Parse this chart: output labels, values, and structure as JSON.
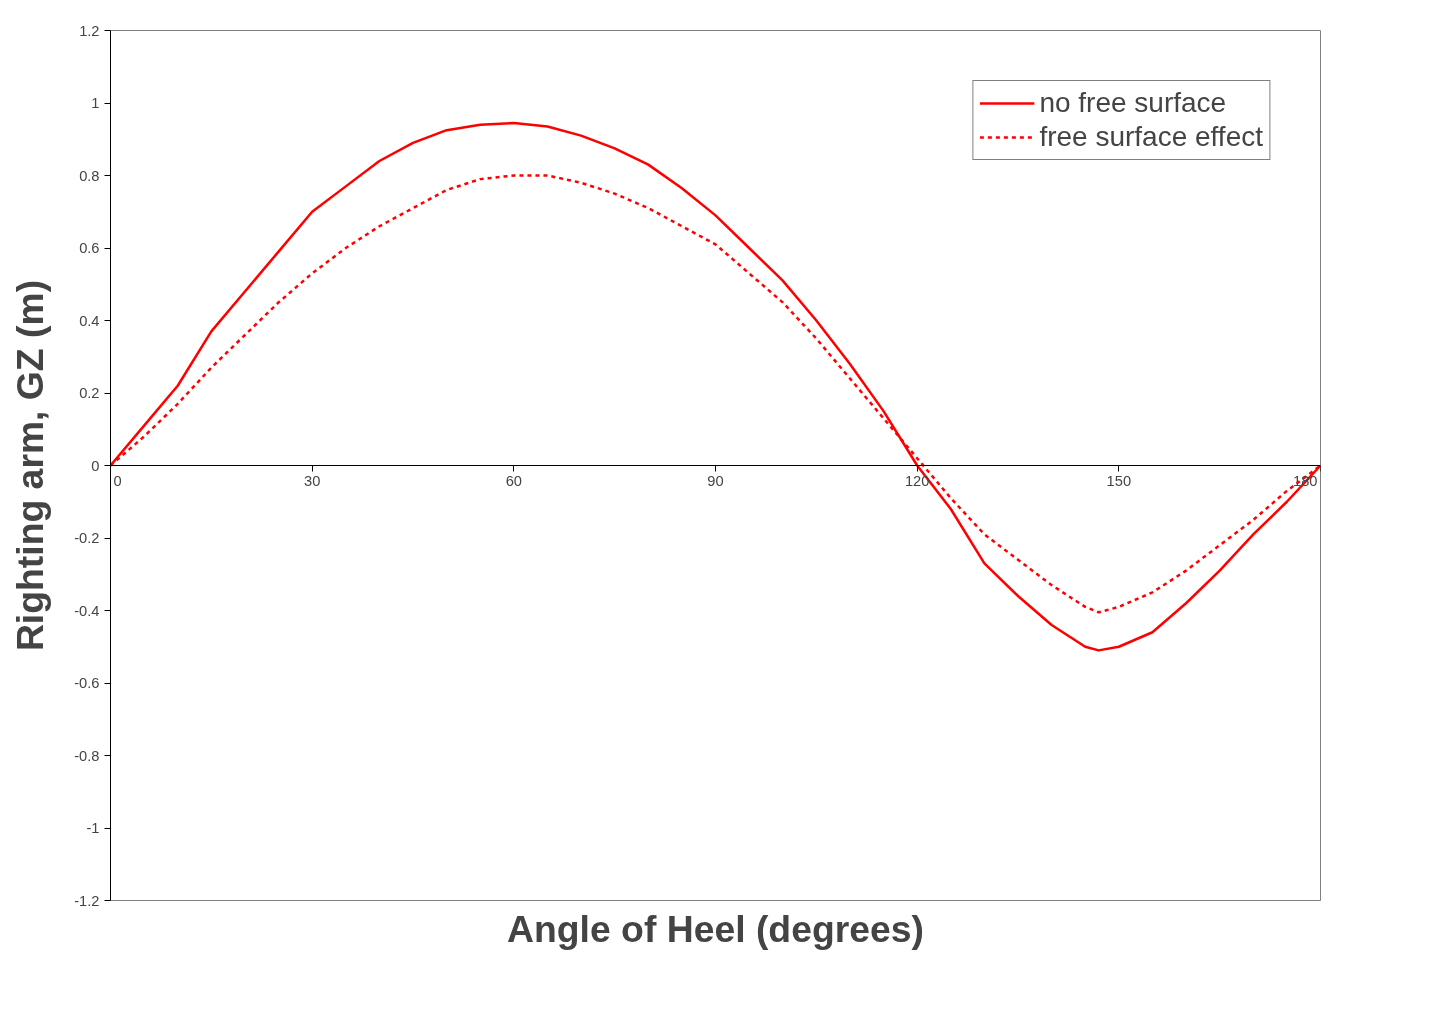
{
  "chart_data": {
    "type": "line",
    "xlabel": "Angle of Heel (degrees)",
    "ylabel": "Righting arm, GZ (m)",
    "x": [
      0,
      5,
      10,
      15,
      20,
      25,
      30,
      35,
      40,
      45,
      50,
      55,
      60,
      65,
      70,
      75,
      80,
      85,
      90,
      95,
      100,
      105,
      110,
      115,
      120,
      125,
      130,
      135,
      140,
      145,
      147,
      150,
      155,
      160,
      165,
      170,
      175,
      180
    ],
    "series": [
      {
        "name": "no free surface",
        "color": "#ff0000",
        "line_style": "solid",
        "values": [
          0,
          0.11,
          0.22,
          0.37,
          0.48,
          0.59,
          0.7,
          0.77,
          0.84,
          0.89,
          0.925,
          0.94,
          0.945,
          0.935,
          0.91,
          0.875,
          0.83,
          0.765,
          0.69,
          0.6,
          0.51,
          0.4,
          0.28,
          0.15,
          0.0,
          -0.12,
          -0.27,
          -0.36,
          -0.44,
          -0.5,
          -0.51,
          -0.5,
          -0.46,
          -0.38,
          -0.29,
          -0.19,
          -0.1,
          0
        ]
      },
      {
        "name": "free surface effect",
        "color": "#ff0000",
        "line_style": "dashed",
        "values": [
          0,
          0.08,
          0.17,
          0.27,
          0.36,
          0.45,
          0.53,
          0.6,
          0.66,
          0.71,
          0.76,
          0.79,
          0.8,
          0.8,
          0.78,
          0.75,
          0.71,
          0.66,
          0.61,
          0.53,
          0.45,
          0.35,
          0.24,
          0.13,
          0.02,
          -0.09,
          -0.19,
          -0.26,
          -0.33,
          -0.39,
          -0.405,
          -0.39,
          -0.35,
          -0.29,
          -0.22,
          -0.15,
          -0.07,
          0
        ]
      }
    ],
    "xlim": [
      0,
      180
    ],
    "xticks": [
      0,
      30,
      60,
      90,
      120,
      150,
      180
    ],
    "ylim": [
      -1.2,
      1.2
    ],
    "yticks": [
      -1.2,
      -1,
      -0.8,
      -0.6,
      -0.4,
      -0.2,
      0,
      0.2,
      0.4,
      0.6,
      0.8,
      1,
      1.2
    ],
    "grid": false,
    "legend": "top right",
    "marker": "none"
  }
}
